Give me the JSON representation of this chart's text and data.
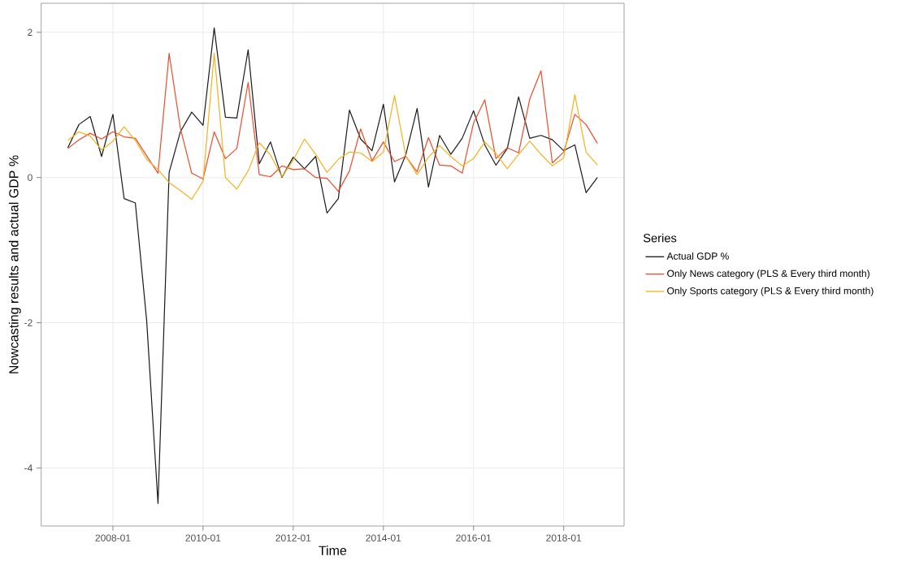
{
  "chart_data": {
    "type": "line",
    "xlabel": "Time",
    "ylabel": "Nowcasting results and actual GDP %",
    "legend_title": "Series",
    "x": [
      "2007-01",
      "2007-04",
      "2007-07",
      "2007-10",
      "2008-01",
      "2008-04",
      "2008-07",
      "2008-10",
      "2009-01",
      "2009-04",
      "2009-07",
      "2009-10",
      "2010-01",
      "2010-04",
      "2010-07",
      "2010-10",
      "2011-01",
      "2011-04",
      "2011-07",
      "2011-10",
      "2012-01",
      "2012-04",
      "2012-07",
      "2012-10",
      "2013-01",
      "2013-04",
      "2013-07",
      "2013-10",
      "2014-01",
      "2014-04",
      "2014-07",
      "2014-10",
      "2015-01",
      "2015-04",
      "2015-07",
      "2015-10",
      "2016-01",
      "2016-04",
      "2016-07",
      "2016-10",
      "2017-01",
      "2017-04",
      "2017-07",
      "2017-10",
      "2018-01",
      "2018-04",
      "2018-07",
      "2018-10"
    ],
    "series": [
      {
        "name": "Actual GDP %",
        "color": "#1a1a1a",
        "values": [
          0.41,
          0.73,
          0.84,
          0.29,
          0.87,
          -0.29,
          -0.35,
          -1.97,
          -4.49,
          0.07,
          0.63,
          0.9,
          0.72,
          2.06,
          0.83,
          0.82,
          1.76,
          0.19,
          0.49,
          0.0,
          0.28,
          0.12,
          0.29,
          -0.49,
          -0.29,
          0.93,
          0.53,
          0.37,
          1.01,
          -0.06,
          0.31,
          0.95,
          -0.13,
          0.58,
          0.32,
          0.54,
          0.92,
          0.45,
          0.17,
          0.4,
          1.11,
          0.54,
          0.58,
          0.52,
          0.37,
          0.45,
          -0.21,
          0.0
        ]
      },
      {
        "name": "Only News category (PLS & Every third month)",
        "color": "#f04a2a",
        "values": [
          0.4,
          0.52,
          0.61,
          0.53,
          0.63,
          0.56,
          0.54,
          0.3,
          0.06,
          1.71,
          0.68,
          0.06,
          -0.02,
          0.63,
          0.26,
          0.4,
          1.31,
          0.04,
          0.01,
          0.16,
          0.11,
          0.12,
          0.0,
          -0.01,
          -0.19,
          0.09,
          0.67,
          0.23,
          0.49,
          0.22,
          0.29,
          0.08,
          0.55,
          0.17,
          0.16,
          0.06,
          0.75,
          1.07,
          0.26,
          0.41,
          0.34,
          1.08,
          1.47,
          0.2,
          0.35,
          0.87,
          0.73,
          0.47
        ]
      },
      {
        "name": "Only Sports category (PLS & Every third month)",
        "color": "#f5b21c",
        "values": [
          0.51,
          0.63,
          0.57,
          0.38,
          0.5,
          0.7,
          0.51,
          0.25,
          0.11,
          -0.07,
          -0.18,
          -0.3,
          -0.05,
          1.71,
          0.0,
          -0.16,
          0.09,
          0.48,
          0.31,
          0.01,
          0.24,
          0.53,
          0.32,
          0.07,
          0.25,
          0.35,
          0.34,
          0.22,
          0.35,
          1.13,
          0.3,
          0.04,
          0.28,
          0.44,
          0.29,
          0.16,
          0.26,
          0.49,
          0.33,
          0.12,
          0.32,
          0.5,
          0.32,
          0.16,
          0.27,
          1.14,
          0.35,
          0.17
        ]
      }
    ],
    "xlim": [
      "2006-05-30",
      "2019-05-05"
    ],
    "xticks": [
      "2008-01",
      "2010-01",
      "2012-01",
      "2014-01",
      "2016-01",
      "2018-01"
    ],
    "ylim": [
      -4.8,
      2.4
    ],
    "yticks": [
      -4,
      -2,
      0,
      2
    ],
    "grid": true,
    "legend": "right"
  }
}
